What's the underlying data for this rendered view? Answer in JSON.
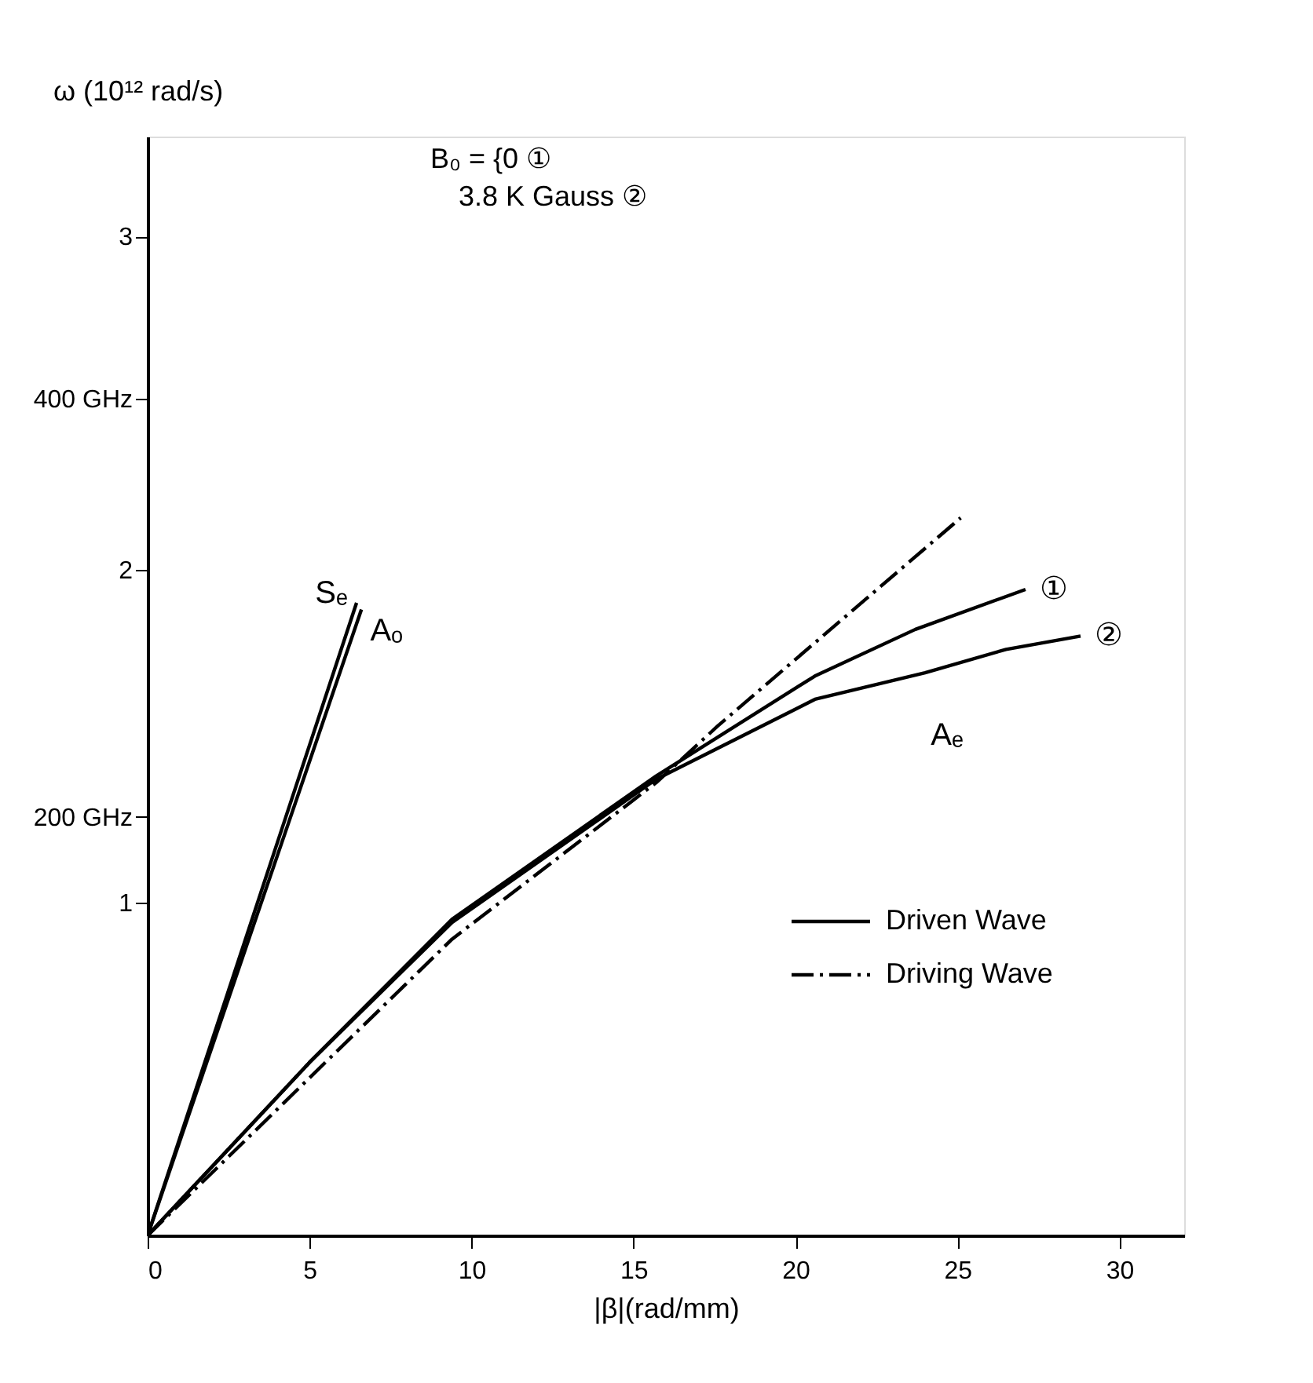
{
  "chart_data": {
    "type": "line",
    "xlabel": "|β|(rad/mm)",
    "ylabel": "ω (10¹² rad/s)",
    "xlim": [
      0,
      32
    ],
    "ylim": [
      0,
      3.3
    ],
    "xticks": [
      0,
      5,
      10,
      15,
      20,
      25,
      30
    ],
    "yticks": [
      1,
      2,
      3
    ],
    "y2lim": [
      0,
      525.2
    ],
    "y2ticks": [
      {
        "value": 200,
        "label": "200 GHz"
      },
      {
        "value": 400,
        "label": "400 GHz"
      }
    ],
    "grid": false,
    "legend": "bottom right",
    "annotations": [
      "B₀ = {0 ①",
      "3.8 K Gauss ②",
      "Driven Wave",
      {
        "text": "Aₑ",
        "x": 24.0,
        "y": 1.69
      }
    ],
    "series": [
      {
        "name": "Sₑ",
        "color": "#000000",
        "line_style": "solid",
        "x": [
          0,
          6.45
        ],
        "values": [
          0,
          1.9
        ]
      },
      {
        "name": "Aₒ",
        "color": "#000000",
        "line_style": "solid",
        "x": [
          0,
          6.6
        ],
        "values": [
          0,
          1.88
        ]
      },
      {
        "name": "①",
        "color": "#000000",
        "line_style": "solid",
        "x": [
          0,
          5,
          9.4,
          15.7,
          20.6,
          23.7,
          27.1
        ],
        "values": [
          0,
          0.52,
          0.95,
          1.38,
          1.68,
          1.82,
          1.94
        ]
      },
      {
        "name": "②",
        "color": "#000000",
        "line_style": "solid",
        "x": [
          0,
          5,
          9.4,
          15.7,
          20.6,
          24.0,
          26.5,
          28.8
        ],
        "values": [
          0,
          0.52,
          0.94,
          1.37,
          1.61,
          1.69,
          1.76,
          1.8
        ]
      },
      {
        "name": "Driving Wave",
        "color": "#000000",
        "line_style": "dashed",
        "x": [
          0,
          9.4,
          15.7,
          17.6,
          25.1
        ],
        "values": [
          0,
          0.89,
          1.36,
          1.53,
          2.155
        ]
      }
    ]
  }
}
